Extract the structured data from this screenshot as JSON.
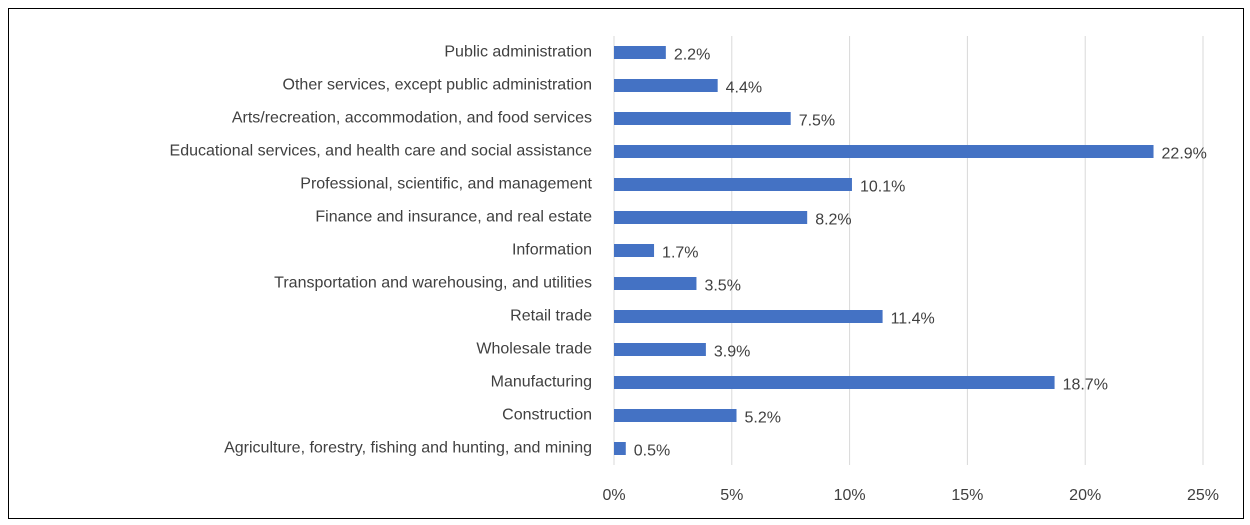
{
  "chart_data": {
    "type": "bar",
    "orientation": "horizontal",
    "categories": [
      "Public administration",
      "Other services, except public administration",
      "Arts/recreation, accommodation, and food services",
      "Educational services, and health care and social assistance",
      "Professional, scientific, and management",
      "Finance and insurance, and real estate",
      "Information",
      "Transportation and warehousing, and utilities",
      "Retail trade",
      "Wholesale trade",
      "Manufacturing",
      "Construction",
      "Agriculture, forestry, fishing and hunting, and mining"
    ],
    "values": [
      2.2,
      4.4,
      7.5,
      22.9,
      10.1,
      8.2,
      1.7,
      3.5,
      11.4,
      3.9,
      18.7,
      5.2,
      0.5
    ],
    "value_labels": [
      "2.2%",
      "4.4%",
      "7.5%",
      "22.9%",
      "10.1%",
      "8.2%",
      "1.7%",
      "3.5%",
      "11.4%",
      "3.9%",
      "18.7%",
      "5.2%",
      "0.5%"
    ],
    "color": "#4472c4",
    "xlim": [
      0,
      25
    ],
    "xticks": [
      {
        "value": 0,
        "label": "0%"
      },
      {
        "value": 5,
        "label": "5%"
      },
      {
        "value": 10,
        "label": "10%"
      },
      {
        "value": 15,
        "label": "15%"
      },
      {
        "value": 20,
        "label": "20%"
      },
      {
        "value": 25,
        "label": "25%"
      }
    ],
    "grid": true
  }
}
